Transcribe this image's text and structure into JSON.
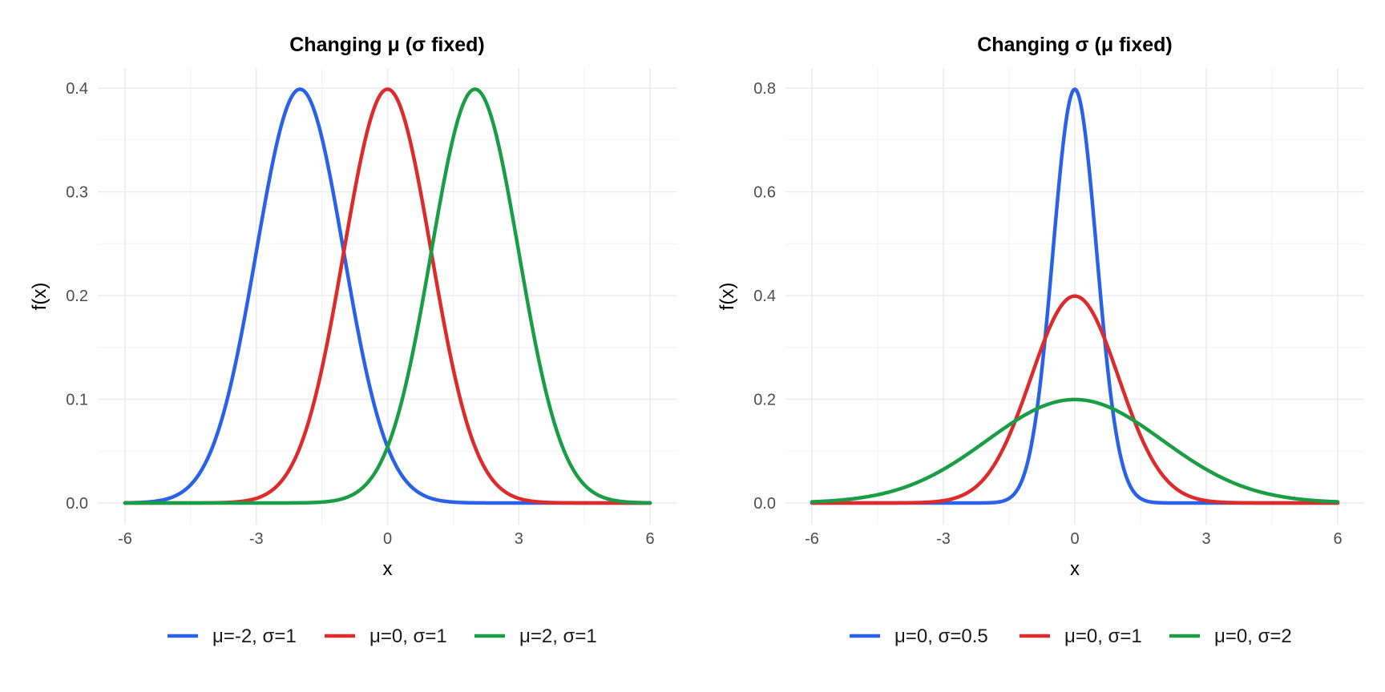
{
  "chart_data": [
    {
      "type": "line",
      "title": "Changing μ (σ fixed)",
      "xlabel": "x",
      "ylabel": "f(x)",
      "xlim": [
        -6,
        6
      ],
      "ylim": [
        0,
        0.4
      ],
      "xticks": [
        -6,
        -3,
        0,
        3,
        6
      ],
      "yticks": [
        0.0,
        0.1,
        0.2,
        0.3,
        0.4
      ],
      "ytick_labels": [
        "0.0",
        "0.1",
        "0.2",
        "0.3",
        "0.4"
      ],
      "grid": true,
      "legend_position": "bottom",
      "series": [
        {
          "name": "μ=-2, σ=1",
          "color": "#2962e8",
          "mu": -2,
          "sigma": 1,
          "x": [
            -6,
            -5,
            -4,
            -3,
            -2.5,
            -2,
            -1.5,
            -1,
            0,
            1,
            2,
            3,
            4,
            5,
            6
          ],
          "y": [
            0.0001,
            0.0044,
            0.054,
            0.242,
            0.352,
            0.399,
            0.352,
            0.242,
            0.054,
            0.0044,
            0.0001,
            0.0,
            0.0,
            0.0,
            0.0
          ]
        },
        {
          "name": "μ=0, σ=1",
          "color": "#dd2a2a",
          "mu": 0,
          "sigma": 1,
          "x": [
            -6,
            -5,
            -4,
            -3,
            -2,
            -1,
            -0.5,
            0,
            0.5,
            1,
            2,
            3,
            4,
            5,
            6
          ],
          "y": [
            0.0,
            0.0,
            0.0001,
            0.0044,
            0.054,
            0.242,
            0.352,
            0.399,
            0.352,
            0.242,
            0.054,
            0.0044,
            0.0001,
            0.0,
            0.0
          ]
        },
        {
          "name": "μ=2, σ=1",
          "color": "#1a9e45",
          "mu": 2,
          "sigma": 1,
          "x": [
            -6,
            -5,
            -4,
            -3,
            -2,
            -1,
            0,
            1,
            1.5,
            2,
            2.5,
            3,
            4,
            5,
            6
          ],
          "y": [
            0.0,
            0.0,
            0.0,
            0.0,
            0.0001,
            0.0044,
            0.054,
            0.242,
            0.352,
            0.399,
            0.352,
            0.242,
            0.054,
            0.0044,
            0.0001
          ]
        }
      ]
    },
    {
      "type": "line",
      "title": "Changing σ (μ fixed)",
      "xlabel": "x",
      "ylabel": "f(x)",
      "xlim": [
        -6,
        6
      ],
      "ylim": [
        0,
        0.8
      ],
      "xticks": [
        -6,
        -3,
        0,
        3,
        6
      ],
      "yticks": [
        0.0,
        0.2,
        0.4,
        0.6,
        0.8
      ],
      "ytick_labels": [
        "0.0",
        "0.2",
        "0.4",
        "0.6",
        "0.8"
      ],
      "grid": true,
      "legend_position": "bottom",
      "series": [
        {
          "name": "μ=0, σ=0.5",
          "color": "#2962e8",
          "mu": 0,
          "sigma": 0.5,
          "x": [
            -6,
            -3,
            -2,
            -1.5,
            -1,
            -0.5,
            -0.25,
            0,
            0.25,
            0.5,
            1,
            1.5,
            2,
            3,
            6
          ],
          "y": [
            0.0,
            0.0,
            0.0003,
            0.0089,
            0.108,
            0.484,
            0.704,
            0.798,
            0.704,
            0.484,
            0.108,
            0.0089,
            0.0003,
            0.0,
            0.0
          ]
        },
        {
          "name": "μ=0, σ=1",
          "color": "#dd2a2a",
          "mu": 0,
          "sigma": 1,
          "x": [
            -6,
            -5,
            -4,
            -3,
            -2,
            -1,
            -0.5,
            0,
            0.5,
            1,
            2,
            3,
            4,
            5,
            6
          ],
          "y": [
            0.0,
            0.0,
            0.0001,
            0.0044,
            0.054,
            0.242,
            0.352,
            0.399,
            0.352,
            0.242,
            0.054,
            0.0044,
            0.0001,
            0.0,
            0.0
          ]
        },
        {
          "name": "μ=0, σ=2",
          "color": "#1a9e45",
          "mu": 0,
          "sigma": 2,
          "x": [
            -6,
            -5,
            -4,
            -3,
            -2,
            -1,
            0,
            1,
            2,
            3,
            4,
            5,
            6
          ],
          "y": [
            0.0022,
            0.0088,
            0.027,
            0.065,
            0.121,
            0.176,
            0.199,
            0.176,
            0.121,
            0.065,
            0.027,
            0.0088,
            0.0022
          ]
        }
      ]
    }
  ]
}
